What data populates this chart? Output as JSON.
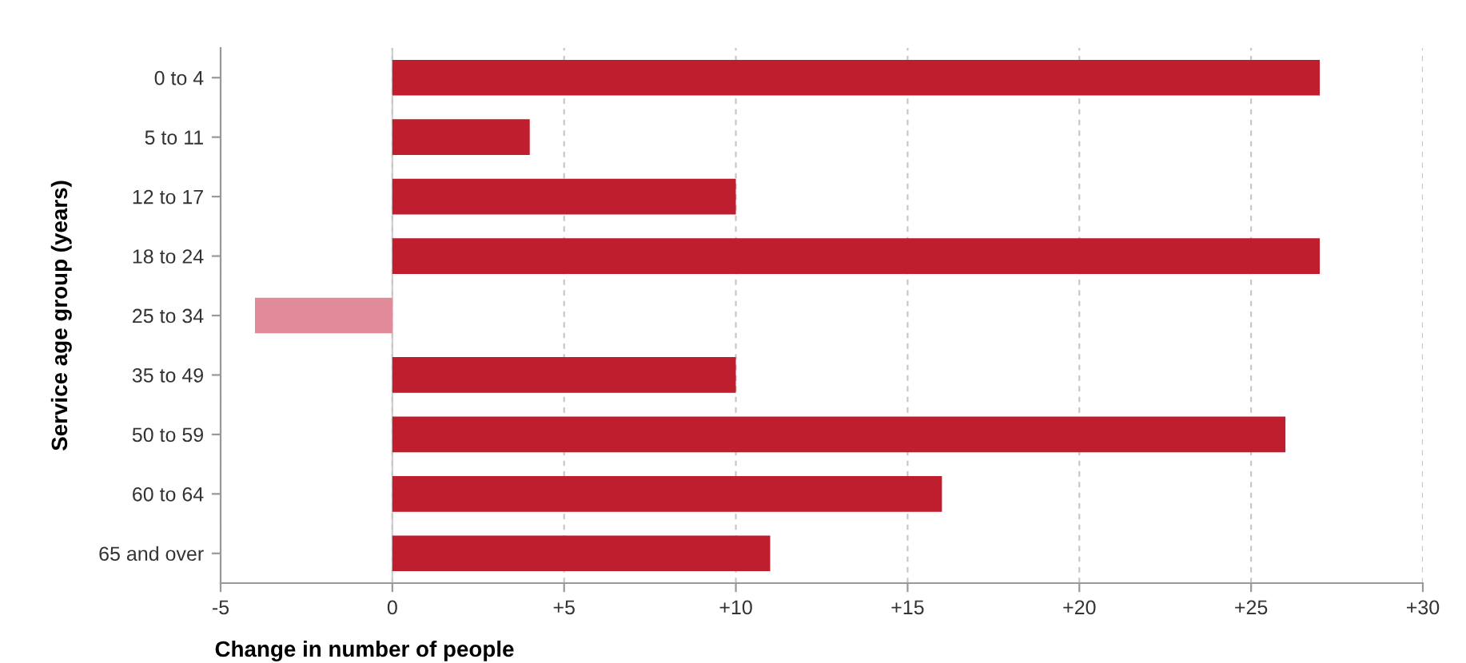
{
  "chart_data": {
    "type": "bar",
    "orientation": "horizontal",
    "xlabel": "Change in number of people",
    "ylabel": "Service age group (years)",
    "categories": [
      "0 to 4",
      "5 to 11",
      "12 to 17",
      "18 to 24",
      "25 to 34",
      "35 to 49",
      "50 to 59",
      "60 to 64",
      "65 and over"
    ],
    "values": [
      27,
      4,
      10,
      27,
      -4,
      10,
      26,
      16,
      11
    ],
    "colors": [
      "#be1e2d",
      "#be1e2d",
      "#be1e2d",
      "#be1e2d",
      "#e08a9a",
      "#be1e2d",
      "#be1e2d",
      "#be1e2d",
      "#be1e2d"
    ],
    "xlim": [
      -5,
      30
    ],
    "xticks": [
      -5,
      0,
      {
        "value": 5,
        "label": "+5"
      },
      {
        "value": 10,
        "label": "+10"
      },
      {
        "value": 15,
        "label": "+15"
      },
      {
        "value": 20,
        "label": "+20"
      },
      {
        "value": 25,
        "label": "+25"
      },
      {
        "value": 30,
        "label": "+30"
      }
    ],
    "grid": "x",
    "legend": false
  }
}
